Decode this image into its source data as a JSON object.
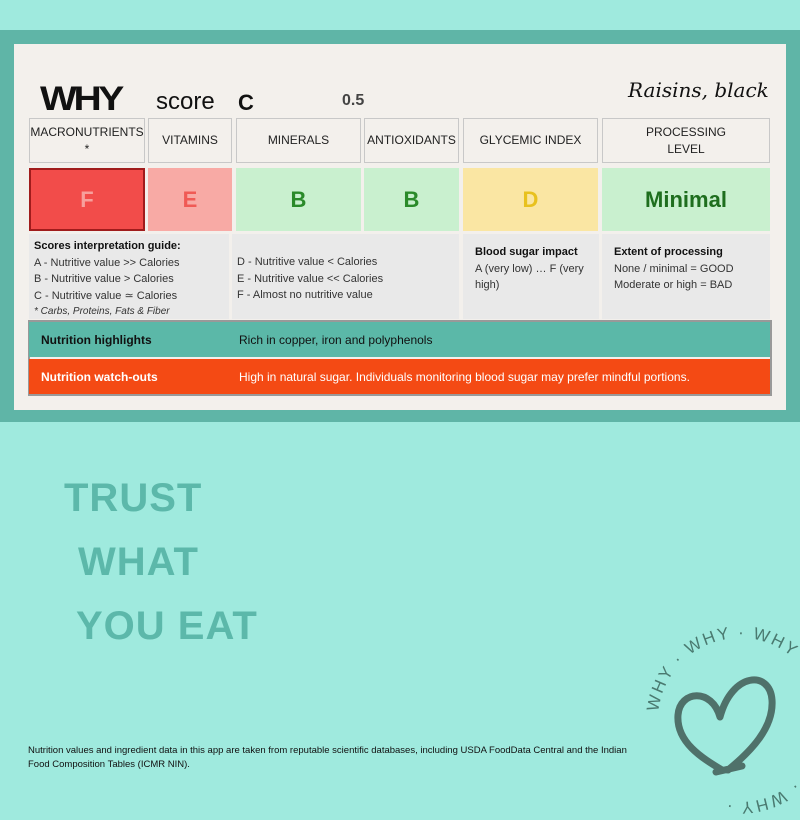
{
  "header": {
    "logo": "WHY",
    "score_label": "score",
    "score_partial": "C",
    "score_value": "0.5",
    "product": "Raisins, black"
  },
  "columns": [
    {
      "label": "MACRONUTRIENTS *",
      "grade": "F",
      "bg": "#f24c4a",
      "fg": "#f7a09c"
    },
    {
      "label": "VITAMINS",
      "grade": "E",
      "bg": "#f8aaa5",
      "fg": "#f05a55"
    },
    {
      "label": "MINERALS",
      "grade": "B",
      "bg": "#c9f0cf",
      "fg": "#2a8a2a"
    },
    {
      "label": "ANTIOXIDANTS",
      "grade": "B",
      "bg": "#c9f0cf",
      "fg": "#2a8a2a"
    },
    {
      "label": "GLYCEMIC INDEX",
      "grade": "D",
      "bg": "#fae6a3",
      "fg": "#e8c11e"
    },
    {
      "label": "PROCESSING LEVEL",
      "grade": "Minimal",
      "bg": "#c9f0cf",
      "fg": "#1e6e1e"
    }
  ],
  "guide": {
    "title": "Scores interpretation guide:",
    "left": [
      "A - Nutritive value >> Calories",
      "B - Nutritive value > Calories",
      "C - Nutritive value ≃ Calories"
    ],
    "footnote": "* Carbs, Proteins, Fats & Fiber",
    "right": [
      "D - Nutritive value < Calories",
      "E - Nutritive value << Calories",
      "F - Almost no nutritive value"
    ],
    "gi_title": "Blood sugar impact",
    "gi_text": "A (very low) … F (very high)",
    "proc_title": "Extent of processing",
    "proc_lines": [
      "None / minimal = GOOD",
      "Moderate or high = BAD"
    ]
  },
  "highlights": {
    "label": "Nutrition highlights",
    "text": "Rich in copper, iron and polyphenols",
    "color": "#5bb8a8"
  },
  "watchouts": {
    "label": "Nutrition watch-outs",
    "text": "High in natural sugar. Individuals monitoring blood sugar may prefer mindful portions.",
    "color": "#f44a14"
  },
  "tagline": [
    "TRUST",
    "WHAT",
    "YOU EAT"
  ],
  "footer": "Nutrition values and ingredient data in this app are taken from reputable scientific databases, including USDA FoodData Central and the Indian Food Composition Tables (ICMR NIN).",
  "badge": {
    "text": "WHY · WHY · WHY · WHY · WHY · WHY ·",
    "icon": "heart-icon"
  }
}
